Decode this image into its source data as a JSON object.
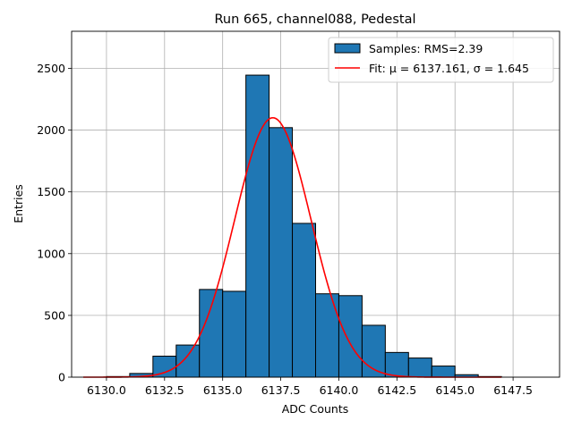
{
  "chart_data": {
    "type": "bar",
    "title": "Run 665, channel088, Pedestal",
    "xlabel": "ADC Counts",
    "ylabel": "Entries",
    "xlim": [
      6128.5,
      6149.5
    ],
    "ylim": [
      0,
      2800
    ],
    "xticks": [
      6130.0,
      6132.5,
      6135.0,
      6137.5,
      6140.0,
      6142.5,
      6145.0,
      6147.5
    ],
    "xtick_labels": [
      "6130.0",
      "6132.5",
      "6135.0",
      "6137.5",
      "6140.0",
      "6142.5",
      "6145.0",
      "6147.5"
    ],
    "yticks": [
      0,
      500,
      1000,
      1500,
      2000,
      2500
    ],
    "ytick_labels": [
      "0",
      "500",
      "1000",
      "1500",
      "2000",
      "2500"
    ],
    "grid": true,
    "legend_position": "top-right",
    "histogram": {
      "name": "Samples: RMS=2.39",
      "color": "#1f77b4",
      "edge_color": "#000000",
      "bin_edges": [
        6129.0,
        6130.0,
        6131.0,
        6132.0,
        6133.0,
        6134.0,
        6135.0,
        6136.0,
        6137.0,
        6138.0,
        6139.0,
        6140.0,
        6141.0,
        6142.0,
        6143.0,
        6144.0,
        6145.0,
        6146.0,
        6147.0,
        6148.0,
        6149.0
      ],
      "counts": [
        0,
        5,
        30,
        170,
        260,
        710,
        695,
        2445,
        2020,
        1245,
        675,
        660,
        420,
        200,
        155,
        90,
        20,
        5,
        0,
        0
      ]
    },
    "fit": {
      "name": "Fit: μ = 6137.161, σ = 1.645",
      "color": "#ff0000",
      "mu": 6137.161,
      "sigma": 1.645,
      "amplitude": 2100,
      "x_range": [
        6129.0,
        6147.0
      ]
    }
  }
}
